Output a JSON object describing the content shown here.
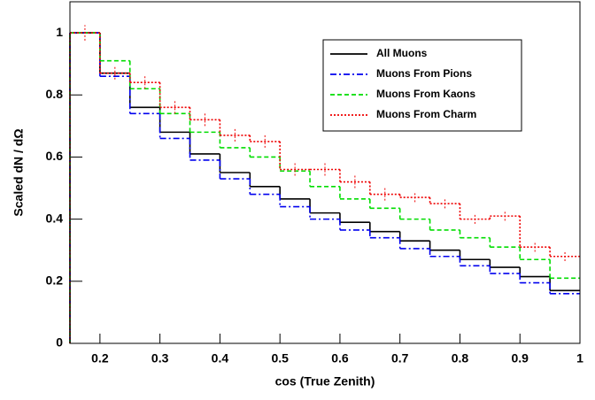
{
  "chart_data": {
    "type": "histogram",
    "x_label": "cos (True Zenith)",
    "y_label": "Scaled dN / dΩ",
    "bins": [
      0.15,
      0.2,
      0.25,
      0.3,
      0.35,
      0.4,
      0.45,
      0.5,
      0.55,
      0.6,
      0.65,
      0.7,
      0.75,
      0.8,
      0.85,
      0.9,
      0.95,
      1.0
    ],
    "series": [
      {
        "name": "All Muons",
        "color": "#000000",
        "line_style": "solid",
        "values": [
          1.0,
          0.87,
          0.76,
          0.68,
          0.61,
          0.55,
          0.505,
          0.465,
          0.42,
          0.39,
          0.36,
          0.33,
          0.3,
          0.27,
          0.245,
          0.215,
          0.17
        ]
      },
      {
        "name": "Muons From Pions",
        "color": "#0000ee",
        "line_style": "dash-dot",
        "values": [
          1.0,
          0.86,
          0.74,
          0.66,
          0.59,
          0.53,
          0.48,
          0.44,
          0.4,
          0.365,
          0.34,
          0.305,
          0.28,
          0.25,
          0.225,
          0.195,
          0.16
        ]
      },
      {
        "name": "Muons From Kaons",
        "color": "#00dd00",
        "line_style": "dashed",
        "values": [
          1.0,
          0.91,
          0.82,
          0.74,
          0.68,
          0.63,
          0.6,
          0.555,
          0.505,
          0.465,
          0.435,
          0.4,
          0.365,
          0.34,
          0.31,
          0.27,
          0.21
        ]
      },
      {
        "name": "Muons From Charm",
        "color": "#ee0000",
        "line_style": "dotted",
        "values": [
          1.0,
          0.87,
          0.84,
          0.76,
          0.72,
          0.67,
          0.65,
          0.56,
          0.56,
          0.52,
          0.48,
          0.47,
          0.45,
          0.4,
          0.41,
          0.31,
          0.28
        ],
        "errors": [
          0.025,
          0.02,
          0.02,
          0.02,
          0.02,
          0.02,
          0.02,
          0.02,
          0.02,
          0.02,
          0.02,
          0.015,
          0.015,
          0.015,
          0.015,
          0.015,
          0.015
        ]
      }
    ],
    "xlim": [
      0.15,
      1.0
    ],
    "ylim": [
      0,
      1.1
    ],
    "xticks": [
      0.2,
      0.3,
      0.4,
      0.5,
      0.6,
      0.7,
      0.8,
      0.9,
      1
    ],
    "yticks": [
      0,
      0.2,
      0.4,
      0.6,
      0.8,
      1
    ],
    "legend": "upper right"
  }
}
